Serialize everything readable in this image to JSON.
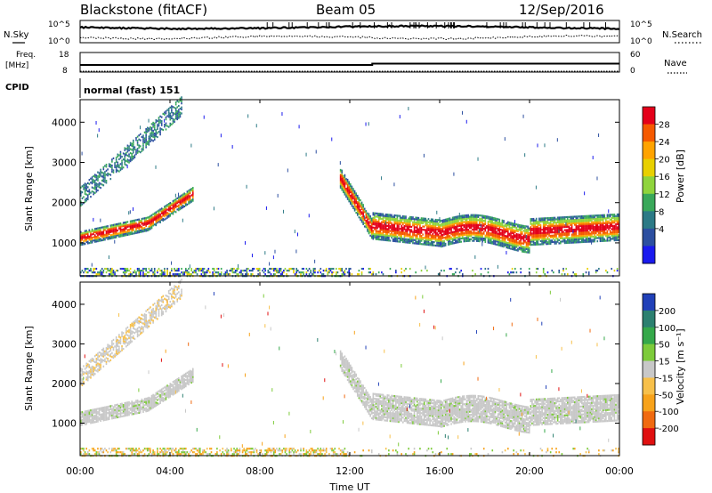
{
  "header": {
    "station": "Blackstone (fitACF)",
    "beam": "Beam 05",
    "date": "12/Sep/2016"
  },
  "panels": {
    "nsky_label": "N.Sky",
    "nsearch_label": "N.Search",
    "nsky_ticks": [
      "10^5",
      "10^0"
    ],
    "nsearch_ticks": [
      "10^5",
      "10^0"
    ],
    "freq_label_1": "Freq.",
    "freq_label_2": "[MHz]",
    "freq_ticks": [
      "18",
      "8"
    ],
    "nave_label": "Nave",
    "nave_ticks": [
      "60",
      "0"
    ],
    "cpid_label": "CPID",
    "cpid_text": "normal (fast) 151"
  },
  "chart_data": [
    {
      "type": "heatmap",
      "name": "power",
      "ylabel": "Slant Range [km]",
      "yticks": [
        "4000",
        "3000",
        "2000",
        "1000"
      ],
      "ytick_values": [
        4000,
        3000,
        2000,
        1000
      ],
      "ylim": [
        180,
        4560
      ],
      "xlim_hours": [
        0,
        24
      ],
      "colorbar_label": "Power [dB]",
      "colorbar_ticks": [
        "28",
        "24",
        "20",
        "16",
        "12",
        "8",
        "4"
      ],
      "colorbar_colors": [
        "#e4001a",
        "#f55a00",
        "#ffa300",
        "#e8d000",
        "#8fd43c",
        "#39a85a",
        "#2c7a86",
        "#2c4fa0",
        "#1a1aee"
      ]
    },
    {
      "type": "heatmap",
      "name": "velocity",
      "ylabel": "Slant Range [km]",
      "yticks": [
        "4000",
        "3000",
        "2000",
        "1000"
      ],
      "ytick_values": [
        4000,
        3000,
        2000,
        1000
      ],
      "ylim": [
        180,
        4560
      ],
      "xlim_hours": [
        0,
        24
      ],
      "colorbar_label": "Velocity [m s⁻¹]",
      "colorbar_ticks": [
        "200",
        "100",
        "50",
        "15",
        "-15",
        "-50",
        "-100",
        "-200"
      ],
      "colorbar_colors": [
        "#2040b8",
        "#2c8070",
        "#35a84a",
        "#7dcb3a",
        "#c8c8c8",
        "#f7c04a",
        "#f7a21a",
        "#f06a10",
        "#e01010"
      ]
    }
  ],
  "xaxis": {
    "label": "Time UT",
    "ticks": [
      "00:00",
      "04:00",
      "08:00",
      "12:00",
      "16:00",
      "20:00",
      "00:00"
    ],
    "tick_hours": [
      0,
      4,
      8,
      12,
      16,
      20,
      24
    ]
  }
}
